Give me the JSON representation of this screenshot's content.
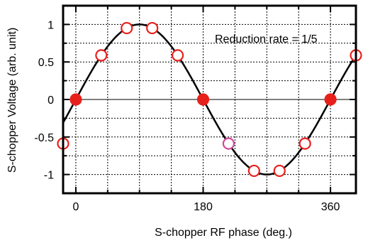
{
  "chart_data": {
    "type": "line",
    "title": "",
    "xlabel": "S-chopper RF phase (deg.)",
    "ylabel": "S-chopper Voltage (arb. unit)",
    "annotation": "Reduction rate = 1/5",
    "xlim": [
      -18,
      396
    ],
    "ylim": [
      -1.25,
      1.25
    ],
    "x_ticks": [
      0,
      180,
      360
    ],
    "x_tick_labels": [
      "0",
      "180",
      "360"
    ],
    "y_ticks": [
      -1,
      -0.5,
      0,
      0.5,
      1
    ],
    "y_tick_labels": [
      "-1",
      "-0.5",
      "0",
      "0.5",
      "1"
    ],
    "grid": true,
    "curve": {
      "function": "sin",
      "amplitude": 1,
      "color": "#000000"
    },
    "points": [
      {
        "x": -18,
        "y": -0.588,
        "style": "open",
        "edge": "#e8201c"
      },
      {
        "x": 0,
        "y": 0.0,
        "style": "filled",
        "edge": "#e8201c"
      },
      {
        "x": 36,
        "y": 0.588,
        "style": "open",
        "edge": "#e8201c"
      },
      {
        "x": 72,
        "y": 0.951,
        "style": "open",
        "edge": "#e8201c"
      },
      {
        "x": 108,
        "y": 0.951,
        "style": "open",
        "edge": "#e8201c"
      },
      {
        "x": 144,
        "y": 0.588,
        "style": "open",
        "edge": "#e8201c"
      },
      {
        "x": 180,
        "y": 0.0,
        "style": "filled",
        "edge": "#e8201c"
      },
      {
        "x": 216,
        "y": -0.588,
        "style": "open",
        "edge": "#d4489a"
      },
      {
        "x": 252,
        "y": -0.951,
        "style": "open",
        "edge": "#e8201c"
      },
      {
        "x": 288,
        "y": -0.951,
        "style": "open",
        "edge": "#e8201c"
      },
      {
        "x": 324,
        "y": -0.588,
        "style": "open",
        "edge": "#e8201c"
      },
      {
        "x": 360,
        "y": 0.0,
        "style": "filled",
        "edge": "#e8201c"
      },
      {
        "x": 396,
        "y": 0.588,
        "style": "open",
        "edge": "#e8201c"
      }
    ],
    "marker_fill_color": "#e8201c"
  }
}
